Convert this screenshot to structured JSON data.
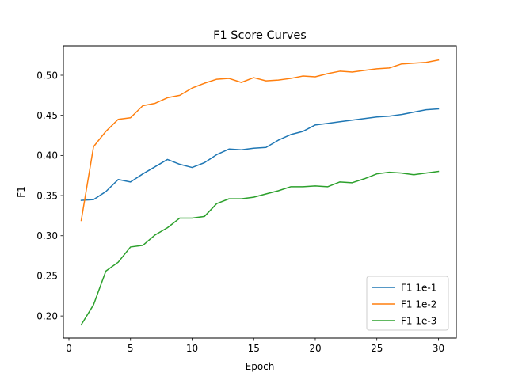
{
  "chart_data": {
    "type": "line",
    "title": "F1 Score Curves",
    "xlabel": "Epoch",
    "ylabel": "F1",
    "xlim": [
      -0.45,
      31.45
    ],
    "ylim": [
      0.1725,
      0.5365
    ],
    "xticks": [
      0,
      5,
      10,
      15,
      20,
      25,
      30
    ],
    "yticks": [
      0.2,
      0.25,
      0.3,
      0.35,
      0.4,
      0.45,
      0.5
    ],
    "xtick_labels": [
      "0",
      "5",
      "10",
      "15",
      "20",
      "25",
      "30"
    ],
    "ytick_labels": [
      "0.20",
      "0.25",
      "0.30",
      "0.35",
      "0.40",
      "0.45",
      "0.50"
    ],
    "grid": false,
    "legend_position": "lower-right",
    "x": [
      1,
      2,
      3,
      4,
      5,
      6,
      7,
      8,
      9,
      10,
      11,
      12,
      13,
      14,
      15,
      16,
      17,
      18,
      19,
      20,
      21,
      22,
      23,
      24,
      25,
      26,
      27,
      28,
      29,
      30
    ],
    "series": [
      {
        "name": "F1 1e-1",
        "color": "#1f77b4",
        "values": [
          0.344,
          0.345,
          0.355,
          0.37,
          0.367,
          0.377,
          0.386,
          0.395,
          0.389,
          0.385,
          0.391,
          0.401,
          0.408,
          0.407,
          0.409,
          0.41,
          0.419,
          0.426,
          0.43,
          0.438,
          0.44,
          0.442,
          0.444,
          0.446,
          0.448,
          0.449,
          0.451,
          0.454,
          0.457,
          0.458
        ]
      },
      {
        "name": "F1 1e-2",
        "color": "#ff7f0e",
        "values": [
          0.319,
          0.411,
          0.43,
          0.445,
          0.447,
          0.462,
          0.465,
          0.472,
          0.475,
          0.484,
          0.49,
          0.495,
          0.496,
          0.491,
          0.497,
          0.493,
          0.494,
          0.496,
          0.499,
          0.498,
          0.502,
          0.505,
          0.504,
          0.506,
          0.508,
          0.509,
          0.514,
          0.515,
          0.516,
          0.519
        ]
      },
      {
        "name": "F1 1e-3",
        "color": "#2ca02c",
        "values": [
          0.189,
          0.214,
          0.256,
          0.267,
          0.286,
          0.288,
          0.301,
          0.31,
          0.322,
          0.322,
          0.324,
          0.34,
          0.346,
          0.346,
          0.348,
          0.352,
          0.356,
          0.361,
          0.361,
          0.362,
          0.361,
          0.367,
          0.366,
          0.371,
          0.377,
          0.379,
          0.378,
          0.376,
          0.378,
          0.38
        ]
      }
    ]
  }
}
